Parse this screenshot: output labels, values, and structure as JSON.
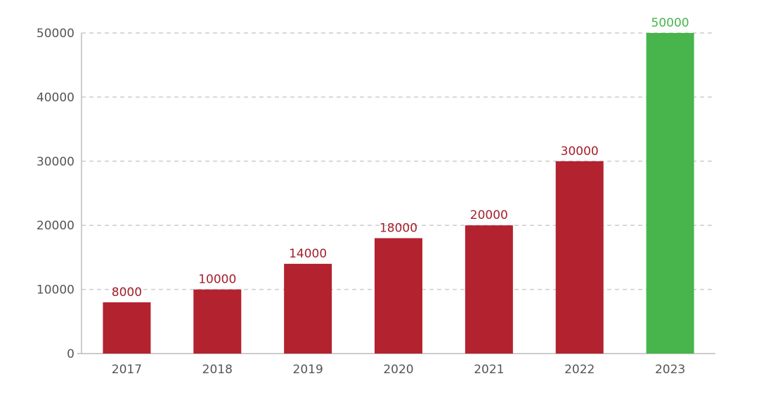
{
  "chart_data": {
    "type": "bar",
    "title": "",
    "xlabel": "",
    "ylabel": "",
    "categories": [
      "2017",
      "2018",
      "2019",
      "2020",
      "2021",
      "2022",
      "2023"
    ],
    "values": [
      8000,
      10000,
      14000,
      18000,
      20000,
      30000,
      50000
    ],
    "data_labels": [
      "8000",
      "10000",
      "14000",
      "18000",
      "20000",
      "30000",
      "50000"
    ],
    "ylim": [
      0,
      50000
    ],
    "y_ticks": [
      0,
      10000,
      20000,
      30000,
      40000,
      50000
    ],
    "y_tick_labels": [
      "0",
      "10000",
      "20000",
      "30000",
      "40000",
      "50000"
    ],
    "grid": true,
    "legend": "none",
    "colors": {
      "bar_default": "#b3222f",
      "bar_highlight": "#47b54b",
      "label_default": "#a3202c",
      "label_highlight": "#47b54b",
      "grid": "#cccccc",
      "axis": "#bbbbbb"
    },
    "highlight_categories": [
      "2023"
    ]
  }
}
